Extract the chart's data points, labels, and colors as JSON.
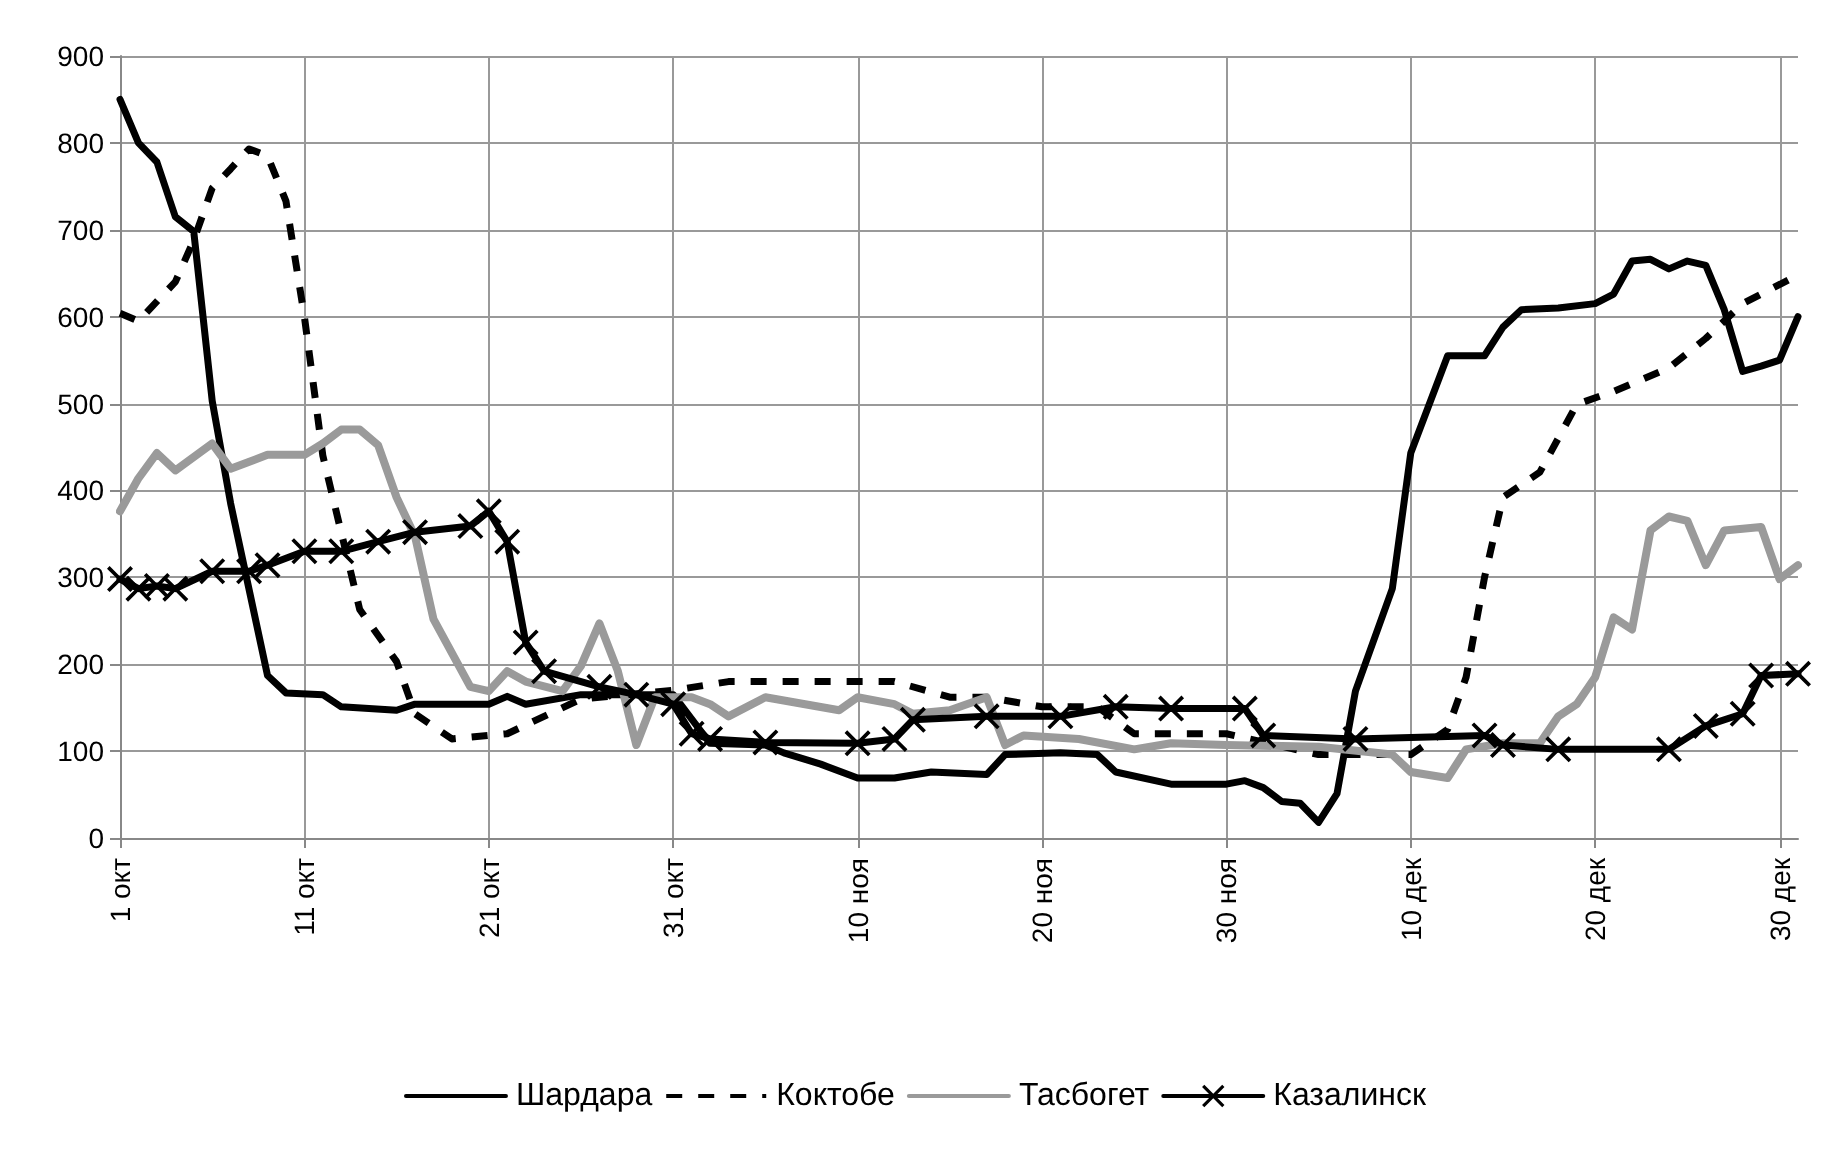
{
  "chart_data": {
    "type": "line",
    "xlim": [
      "--10-01",
      "--12-31"
    ],
    "xticks": [
      {
        "value": "--10-01",
        "label": "1 окт"
      },
      {
        "value": "--10-11",
        "label": "11 окт"
      },
      {
        "value": "--10-21",
        "label": "21 окт"
      },
      {
        "value": "--10-31",
        "label": "31 окт"
      },
      {
        "value": "--11-10",
        "label": "10 ноя"
      },
      {
        "value": "--11-20",
        "label": "20 ноя"
      },
      {
        "value": "--11-30",
        "label": "30 ноя"
      },
      {
        "value": "--12-10",
        "label": "10 дек"
      },
      {
        "value": "--12-20",
        "label": "20 дек"
      },
      {
        "value": "--12-30",
        "label": "30 дек"
      }
    ],
    "ylim": [
      0,
      900
    ],
    "yticks": [
      0,
      100,
      200,
      300,
      400,
      500,
      600,
      700,
      800,
      900
    ],
    "grid": true,
    "legend": "bottom",
    "series": [
      {
        "name": "Шардара",
        "color": "#000000",
        "line_style": "solid",
        "marker": "none",
        "x": [
          "--10-01",
          "--10-02",
          "--10-03",
          "--10-04",
          "--10-05",
          "--10-06",
          "--10-07",
          "--10-09",
          "--10-10",
          "--10-12",
          "--10-13",
          "--10-16",
          "--10-17",
          "--10-21",
          "--10-22",
          "--10-23",
          "--10-26",
          "--10-31",
          "--11-02",
          "--11-05",
          "--11-06",
          "--11-08",
          "--11-10",
          "--11-12",
          "--11-14",
          "--11-17",
          "--11-18",
          "--11-21",
          "--11-23",
          "--11-24",
          "--11-27",
          "--11-30",
          "--12-01",
          "--12-02",
          "--12-03",
          "--12-04",
          "--12-05",
          "--12-06",
          "--12-07",
          "--12-09",
          "--12-10",
          "--12-12",
          "--12-14",
          "--12-15",
          "--12-16",
          "--12-18",
          "--12-20",
          "--12-21",
          "--12-22",
          "--12-23",
          "--12-24",
          "--12-25",
          "--12-26",
          "--12-27",
          "--12-28",
          "--12-29",
          "--12-30",
          "--12-31"
        ],
        "values": [
          850,
          800,
          778,
          715,
          698,
          503,
          385,
          187,
          167,
          165,
          151,
          147,
          154,
          154,
          163,
          154,
          165,
          165,
          109,
          107,
          98,
          85,
          69,
          69,
          76,
          73,
          96,
          98,
          96,
          76,
          62,
          62,
          66,
          58,
          42,
          40,
          18,
          51,
          169,
          287,
          443,
          555,
          555,
          588,
          608,
          610,
          615,
          626,
          664,
          666,
          655,
          664,
          659,
          608,
          537,
          543,
          550,
          600
        ]
      },
      {
        "name": "Коктобе",
        "color": "#000000",
        "line_style": "dashed",
        "marker": "none",
        "x": [
          "--10-01",
          "--10-02",
          "--10-04",
          "--10-05",
          "--10-06",
          "--10-07",
          "--10-08",
          "--10-09",
          "--10-10",
          "--10-11",
          "--10-12",
          "--10-14",
          "--10-16",
          "--10-17",
          "--10-19",
          "--10-22",
          "--10-26",
          "--10-31",
          "--11-03",
          "--11-12",
          "--11-15",
          "--11-17",
          "--11-20",
          "--11-23",
          "--11-25",
          "--11-30",
          "--12-05",
          "--12-10",
          "--12-12",
          "--12-13",
          "--12-14",
          "--12-15",
          "--12-17",
          "--12-19",
          "--12-21",
          "--12-24",
          "--12-26",
          "--12-28",
          "--12-31"
        ],
        "values": [
          604,
          595,
          640,
          688,
          748,
          770,
          793,
          785,
          733,
          600,
          440,
          263,
          203,
          143,
          114,
          120,
          160,
          170,
          180,
          180,
          162,
          162,
          151,
          151,
          120,
          120,
          96,
          96,
          125,
          185,
          300,
          392,
          421,
          499,
          514,
          541,
          575,
          615,
          648
        ]
      },
      {
        "name": "Тасбогет",
        "color": "#9a9a9a",
        "line_style": "solid",
        "marker": "none",
        "x": [
          "--10-01",
          "--10-02",
          "--10-03",
          "--10-04",
          "--10-06",
          "--10-07",
          "--10-09",
          "--10-11",
          "--10-12",
          "--10-13",
          "--10-14",
          "--10-15",
          "--10-16",
          "--10-17",
          "--10-18",
          "--10-20",
          "--10-21",
          "--10-22",
          "--10-23",
          "--10-25",
          "--10-26",
          "--10-27",
          "--10-28",
          "--10-29",
          "--10-30",
          "--11-01",
          "--11-02",
          "--11-03",
          "--11-05",
          "--11-09",
          "--11-10",
          "--11-12",
          "--11-13",
          "--11-15",
          "--11-17",
          "--11-18",
          "--11-19",
          "--11-22",
          "--11-25",
          "--11-27",
          "--11-30",
          "--12-05",
          "--12-09",
          "--12-10",
          "--12-12",
          "--12-13",
          "--12-15",
          "--12-17",
          "--12-18",
          "--12-19",
          "--12-20",
          "--12-21",
          "--12-22",
          "--12-23",
          "--12-24",
          "--12-25",
          "--12-26",
          "--12-27",
          "--12-29",
          "--12-30",
          "--12-31"
        ],
        "values": [
          376,
          414,
          443,
          423,
          454,
          425,
          441,
          441,
          454,
          470,
          470,
          452,
          392,
          347,
          252,
          174,
          169,
          192,
          180,
          169,
          198,
          247,
          192,
          107,
          162,
          162,
          154,
          140,
          162,
          147,
          162,
          154,
          143,
          147,
          162,
          107,
          118,
          114,
          102,
          109,
          107,
          105,
          96,
          76,
          69,
          102,
          109,
          109,
          140,
          154,
          185,
          254,
          240,
          354,
          370,
          365,
          314,
          354,
          358,
          298,
          314
        ]
      },
      {
        "name": "Казалинск",
        "color": "#000000",
        "line_style": "solid",
        "marker": "cross",
        "x": [
          "--10-01",
          "--10-02",
          "--10-03",
          "--10-04",
          "--10-06",
          "--10-08",
          "--10-09",
          "--10-11",
          "--10-13",
          "--10-15",
          "--10-17",
          "--10-20",
          "--10-21",
          "--10-22",
          "--10-23",
          "--10-24",
          "--10-27",
          "--10-29",
          "--10-31",
          "--11-01",
          "--11-02",
          "--11-05",
          "--11-10",
          "--11-12",
          "--11-13",
          "--11-17",
          "--11-21",
          "--11-24",
          "--11-27",
          "--12-01",
          "--12-02",
          "--12-07",
          "--12-14",
          "--12-15",
          "--12-18",
          "--12-24",
          "--12-26",
          "--12-28",
          "--12-29",
          "--12-31"
        ],
        "values": [
          298,
          287,
          290,
          287,
          307,
          307,
          314,
          330,
          330,
          341,
          352,
          359,
          376,
          341,
          225,
          192,
          174,
          165,
          154,
          120,
          114,
          110,
          109,
          114,
          136,
          140,
          140,
          151,
          149,
          149,
          118,
          114,
          118,
          107,
          102,
          102,
          129,
          143,
          187,
          189
        ]
      }
    ]
  }
}
